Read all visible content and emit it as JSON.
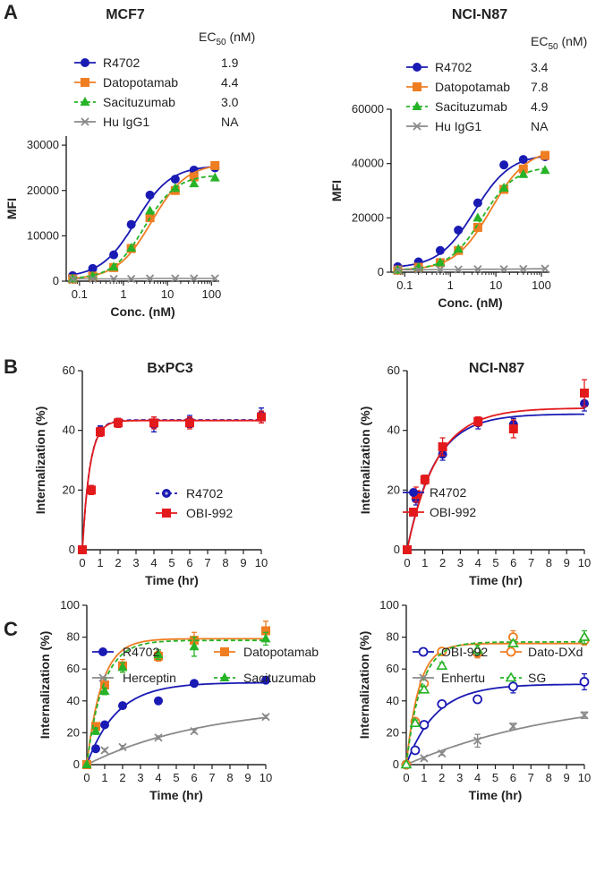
{
  "colors": {
    "blue": "#1a1ab4",
    "orange": "#ef7d22",
    "green": "#27b327",
    "gray": "#8a8a8a",
    "red": "#e31a1c",
    "axis": "#222222"
  },
  "panel_labels": [
    "A",
    "B",
    "C"
  ],
  "chart_data": [
    {
      "id": "a1",
      "type": "scatter",
      "title": "MCF7",
      "xlabel": "Conc. (nM)",
      "ylabel": "MFI",
      "xscale": "log",
      "xlim": [
        0.05,
        150
      ],
      "ylim": [
        0,
        32000
      ],
      "xticks": [
        0.1,
        1,
        10,
        100
      ],
      "xtick_labels": [
        "0.1",
        "1",
        "10",
        "100"
      ],
      "yticks": [
        0,
        10000,
        20000,
        30000
      ],
      "ytick_labels": [
        "0",
        "10000",
        "20000",
        "30000"
      ],
      "legend_header": "EC50 (nM)",
      "legend_position": "top",
      "legend_values": [
        "1.9",
        "4.4",
        "3.0",
        "NA"
      ],
      "series": [
        {
          "name": "R4702",
          "color": "blue",
          "marker": "circle",
          "line": "solid",
          "x": [
            0.07,
            0.2,
            0.6,
            1.5,
            4,
            15,
            40,
            120
          ],
          "y": [
            1200,
            2800,
            5800,
            12500,
            19000,
            22500,
            24500,
            25000
          ],
          "fit": {
            "bottom": 800,
            "top": 25500,
            "ec50": 1.9,
            "hill": 1.1
          }
        },
        {
          "name": "Datopotamab",
          "color": "orange",
          "marker": "square",
          "line": "solid",
          "x": [
            0.07,
            0.2,
            0.6,
            1.5,
            4,
            15,
            40,
            120
          ],
          "y": [
            500,
            1100,
            3000,
            7200,
            14000,
            20000,
            23000,
            25500
          ],
          "fit": {
            "bottom": 400,
            "top": 26000,
            "ec50": 4.4,
            "hill": 1.1
          }
        },
        {
          "name": "Sacituzumab",
          "color": "green",
          "marker": "triangle",
          "line": "dashed",
          "x": [
            0.07,
            0.2,
            0.6,
            1.5,
            4,
            15,
            40,
            120
          ],
          "y": [
            500,
            1100,
            3100,
            7300,
            15500,
            20500,
            21500,
            22800
          ],
          "fit": {
            "bottom": 400,
            "top": 23500,
            "ec50": 3.0,
            "hill": 1.2
          }
        },
        {
          "name": "Hu IgG1",
          "color": "gray",
          "marker": "x",
          "line": "solid",
          "x": [
            0.07,
            0.2,
            0.6,
            1.5,
            4,
            15,
            40,
            120
          ],
          "y": [
            500,
            500,
            500,
            500,
            600,
            600,
            600,
            600
          ]
        }
      ]
    },
    {
      "id": "a2",
      "type": "scatter",
      "title": "NCI-N87",
      "xlabel": "Conc. (nM)",
      "ylabel": "MFI",
      "xscale": "log",
      "xlim": [
        0.05,
        150
      ],
      "ylim": [
        0,
        60000
      ],
      "xticks": [
        0.1,
        1,
        10,
        100
      ],
      "xtick_labels": [
        "0.1",
        "1",
        "10",
        "100"
      ],
      "yticks": [
        0,
        20000,
        40000,
        60000
      ],
      "ytick_labels": [
        "0",
        "20000",
        "40000",
        "60000"
      ],
      "legend_header": "EC50 (nM)",
      "legend_position": "top",
      "legend_values": [
        "3.4",
        "7.8",
        "4.9",
        "NA"
      ],
      "series": [
        {
          "name": "R4702",
          "color": "blue",
          "marker": "circle",
          "line": "solid",
          "x": [
            0.07,
            0.2,
            0.6,
            1.5,
            4,
            15,
            40,
            120
          ],
          "y": [
            2000,
            3800,
            8000,
            15500,
            25500,
            39500,
            41500,
            42500
          ],
          "fit": {
            "bottom": 1500,
            "top": 43500,
            "ec50": 3.4,
            "hill": 1.1
          }
        },
        {
          "name": "Datopotamab",
          "color": "orange",
          "marker": "square",
          "line": "solid",
          "x": [
            0.07,
            0.2,
            0.6,
            1.5,
            4,
            15,
            40,
            120
          ],
          "y": [
            800,
            1800,
            3500,
            8000,
            16500,
            30500,
            38000,
            43000
          ],
          "fit": {
            "bottom": 700,
            "top": 45500,
            "ec50": 7.8,
            "hill": 1.1
          }
        },
        {
          "name": "Sacituzumab",
          "color": "green",
          "marker": "triangle",
          "line": "dashed",
          "x": [
            0.07,
            0.2,
            0.6,
            1.5,
            4,
            15,
            40,
            120
          ],
          "y": [
            800,
            1800,
            3500,
            8500,
            20000,
            31000,
            36000,
            37500
          ],
          "fit": {
            "bottom": 700,
            "top": 39000,
            "ec50": 4.9,
            "hill": 1.2
          }
        },
        {
          "name": "Hu IgG1",
          "color": "gray",
          "marker": "x",
          "line": "solid",
          "x": [
            0.07,
            0.2,
            0.6,
            1.5,
            4,
            15,
            40,
            120
          ],
          "y": [
            900,
            900,
            1000,
            1000,
            1100,
            1100,
            1200,
            1300
          ]
        }
      ]
    },
    {
      "id": "b1",
      "type": "scatter",
      "title": "BxPC3",
      "xlabel": "Time (hr)",
      "ylabel": "Internalization (%)",
      "xscale": "linear",
      "xlim": [
        0,
        10
      ],
      "ylim": [
        0,
        60
      ],
      "xticks": [
        0,
        1,
        2,
        3,
        4,
        5,
        6,
        7,
        8,
        9,
        10
      ],
      "xtick_labels": [
        "0",
        "1",
        "2",
        "3",
        "4",
        "5",
        "6",
        "7",
        "8",
        "9",
        "10"
      ],
      "yticks": [
        0,
        20,
        40,
        60
      ],
      "ytick_labels": [
        "0",
        "20",
        "40",
        "60"
      ],
      "legend_position": "bottom-right",
      "series": [
        {
          "name": "R4702",
          "color": "blue",
          "marker": "circle-dot",
          "line": "dashed",
          "x": [
            0,
            0.5,
            1,
            2,
            4,
            6,
            10
          ],
          "y": [
            0,
            20,
            40,
            42.5,
            42,
            43,
            45
          ],
          "err": [
            0,
            1.5,
            1.5,
            1.5,
            2.5,
            2,
            2.5
          ],
          "fit": {
            "plateau": 43.5,
            "k": 2.4
          }
        },
        {
          "name": "OBI-992",
          "color": "red",
          "marker": "square",
          "line": "solid",
          "x": [
            0,
            0.5,
            1,
            2,
            4,
            6,
            10
          ],
          "y": [
            0,
            20,
            39.5,
            42.5,
            42.5,
            42.5,
            44.5
          ],
          "err": [
            0,
            1.5,
            1.5,
            1.5,
            2,
            2,
            2
          ],
          "fit": {
            "plateau": 43.3,
            "k": 2.4
          }
        }
      ]
    },
    {
      "id": "b2",
      "type": "scatter",
      "title": "NCI-N87",
      "xlabel": "Time (hr)",
      "ylabel": "Internalization (%)",
      "xscale": "linear",
      "xlim": [
        0,
        10
      ],
      "ylim": [
        0,
        60
      ],
      "xticks": [
        0,
        1,
        2,
        3,
        4,
        5,
        6,
        7,
        8,
        9,
        10
      ],
      "xtick_labels": [
        "0",
        "1",
        "2",
        "3",
        "4",
        "5",
        "6",
        "7",
        "8",
        "9",
        "10"
      ],
      "yticks": [
        0,
        20,
        40,
        60
      ],
      "ytick_labels": [
        "0",
        "20",
        "40",
        "60"
      ],
      "legend_position": "bottom-right",
      "series": [
        {
          "name": "R4702",
          "color": "blue",
          "marker": "circle",
          "line": "solid",
          "x": [
            0,
            0.5,
            1,
            2,
            4,
            6,
            10
          ],
          "y": [
            0,
            17,
            23.5,
            32,
            42.5,
            42,
            49
          ],
          "err": [
            0,
            2,
            1.5,
            2,
            2,
            2,
            2.5
          ],
          "fit": {
            "plateau": 45.5,
            "k": 0.65
          }
        },
        {
          "name": "OBI-992",
          "color": "red",
          "marker": "square",
          "line": "solid",
          "x": [
            0,
            0.5,
            1,
            2,
            4,
            6,
            10
          ],
          "y": [
            0,
            18.5,
            23.5,
            34.5,
            43,
            40.5,
            52.5
          ],
          "err": [
            0,
            2.5,
            1.5,
            3,
            1.5,
            3,
            4.5
          ],
          "fit": {
            "plateau": 47.5,
            "k": 0.6
          }
        }
      ]
    },
    {
      "id": "c1",
      "type": "scatter",
      "title": "",
      "xlabel": "Time (hr)",
      "ylabel": "Internalization (%)",
      "xscale": "linear",
      "xlim": [
        0,
        10
      ],
      "ylim": [
        0,
        100
      ],
      "xticks": [
        0,
        1,
        2,
        3,
        4,
        5,
        6,
        7,
        8,
        9,
        10
      ],
      "xtick_labels": [
        "0",
        "1",
        "2",
        "3",
        "4",
        "5",
        "6",
        "7",
        "8",
        "9",
        "10"
      ],
      "yticks": [
        0,
        20,
        40,
        60,
        80,
        100
      ],
      "ytick_labels": [
        "0",
        "20",
        "40",
        "60",
        "80",
        "100"
      ],
      "legend_position": "top",
      "series": [
        {
          "name": "R4702",
          "color": "blue",
          "marker": "circle",
          "line": "solid",
          "x": [
            0,
            0.5,
            1,
            2,
            4,
            6,
            10
          ],
          "y": [
            0,
            10,
            25,
            37,
            40,
            51,
            53
          ],
          "err": [
            0,
            1,
            1,
            1.5,
            1.5,
            1.5,
            1.5
          ],
          "fit": {
            "plateau": 51.5,
            "k": 0.6
          }
        },
        {
          "name": "Herceptin",
          "color": "gray",
          "marker": "x",
          "line": "solid",
          "x": [
            0,
            1,
            2,
            4,
            6,
            10
          ],
          "y": [
            0,
            9,
            11,
            17,
            21,
            30
          ],
          "err": [
            0,
            1,
            1,
            1,
            1,
            1
          ],
          "fit": {
            "plateau": 38,
            "k": 0.15
          }
        },
        {
          "name": "Datopotamab",
          "color": "orange",
          "marker": "square",
          "line": "solid",
          "x": [
            0,
            0.5,
            1,
            2,
            4,
            6,
            10
          ],
          "y": [
            0,
            24,
            50,
            62,
            68,
            78,
            84
          ],
          "err": [
            0,
            2,
            2,
            4,
            3,
            5,
            6
          ],
          "fit": {
            "plateau": 79,
            "k": 1.2
          }
        },
        {
          "name": "Sacituzumab",
          "color": "green",
          "marker": "triangle",
          "line": "dashed",
          "x": [
            0,
            0.5,
            1,
            2,
            4,
            6,
            10
          ],
          "y": [
            0,
            21,
            46,
            61,
            69,
            74,
            79
          ],
          "err": [
            0,
            2,
            2,
            3,
            3,
            6,
            4
          ],
          "fit": {
            "plateau": 78,
            "k": 1.1
          }
        }
      ]
    },
    {
      "id": "c2",
      "type": "scatter",
      "title": "",
      "xlabel": "Time (hr)",
      "ylabel": "Internalization (%)",
      "xscale": "linear",
      "xlim": [
        0,
        10
      ],
      "ylim": [
        0,
        100
      ],
      "xticks": [
        0,
        1,
        2,
        3,
        4,
        5,
        6,
        7,
        8,
        9,
        10
      ],
      "xtick_labels": [
        "0",
        "1",
        "2",
        "3",
        "4",
        "5",
        "6",
        "7",
        "8",
        "9",
        "10"
      ],
      "yticks": [
        0,
        20,
        40,
        60,
        80,
        100
      ],
      "ytick_labels": [
        "0",
        "20",
        "40",
        "60",
        "80",
        "100"
      ],
      "legend_position": "top",
      "series": [
        {
          "name": "OBI-992",
          "color": "blue",
          "marker": "circle-open",
          "line": "solid",
          "x": [
            0,
            0.5,
            1,
            2,
            4,
            6,
            10
          ],
          "y": [
            0,
            9,
            25,
            38,
            41,
            49,
            52
          ],
          "err": [
            0,
            1,
            1,
            1.5,
            2,
            4,
            5
          ],
          "fit": {
            "plateau": 50.5,
            "k": 0.6
          }
        },
        {
          "name": "Enhertu",
          "color": "gray",
          "marker": "x",
          "line": "solid",
          "x": [
            0,
            1,
            2,
            4,
            6,
            10
          ],
          "y": [
            0,
            4,
            7,
            15,
            24,
            31
          ],
          "err": [
            0,
            1,
            1,
            4,
            2,
            2
          ],
          "fit": {
            "plateau": 45,
            "k": 0.11
          }
        },
        {
          "name": "Dato-DXd",
          "color": "orange",
          "marker": "circle-open",
          "line": "solid",
          "x": [
            0,
            0.5,
            1,
            2,
            4,
            6,
            10
          ],
          "y": [
            0,
            27,
            51,
            71,
            70,
            80,
            78
          ],
          "err": [
            0,
            2,
            2,
            2,
            3,
            4,
            3
          ],
          "fit": {
            "plateau": 76,
            "k": 1.4
          }
        },
        {
          "name": "SG",
          "color": "green",
          "marker": "triangle-open",
          "line": "dashed",
          "x": [
            0,
            0.5,
            1,
            2,
            4,
            6,
            10
          ],
          "y": [
            0,
            26,
            47,
            62,
            72,
            76,
            80
          ],
          "err": [
            0,
            2,
            2,
            2,
            3,
            2,
            4
          ],
          "fit": {
            "plateau": 77,
            "k": 1.2
          }
        }
      ]
    }
  ]
}
